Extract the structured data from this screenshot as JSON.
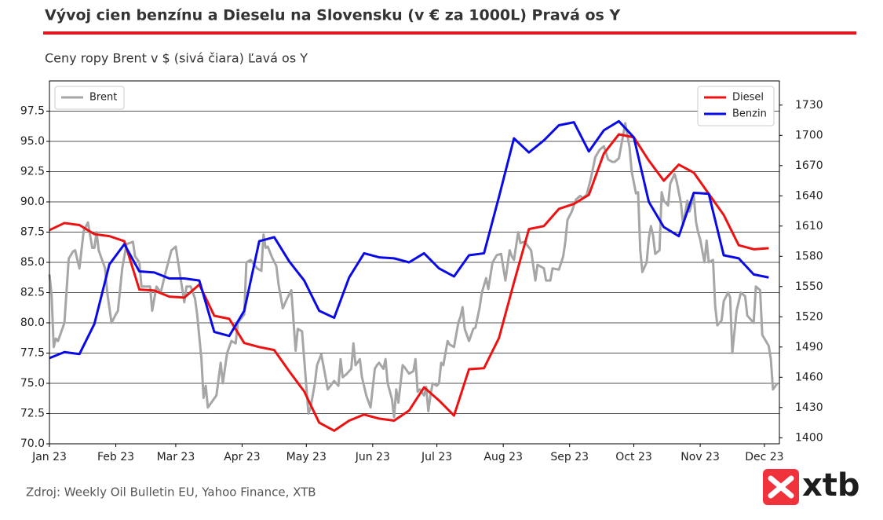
{
  "chart_data": {
    "type": "line",
    "title": "Vývoj cien benzínu a Dieselu na Slovensku (v € za 1000L) Pravá os Y",
    "subtitle": "Ceny ropy Brent v $ (sivá čiara) Ľavá os Y",
    "source": "Zdroj: Weekly Oil Bulletin EU, Yahoo Finance, XTB",
    "logo": "xtb",
    "xlim": [
      0,
      341
    ],
    "xticks": [
      {
        "value": 0,
        "label": "Jan 23"
      },
      {
        "value": 31,
        "label": "Feb 23"
      },
      {
        "value": 59,
        "label": "Mar 23"
      },
      {
        "value": 90,
        "label": "Apr 23"
      },
      {
        "value": 120,
        "label": "May 23"
      },
      {
        "value": 151,
        "label": "Jun 23"
      },
      {
        "value": 181,
        "label": "Jul 23"
      },
      {
        "value": 212,
        "label": "Aug 23"
      },
      {
        "value": 243,
        "label": "Sep 23"
      },
      {
        "value": 273,
        "label": "Oct 23"
      },
      {
        "value": 304,
        "label": "Nov 23"
      },
      {
        "value": 334,
        "label": "Dec 23"
      }
    ],
    "ylim": [
      70,
      100
    ],
    "yticks": [
      {
        "value": 70,
        "label": "70.0"
      },
      72.5,
      {
        "value": 75,
        "label": "75.0"
      },
      77.5,
      {
        "value": 80,
        "label": "80.0"
      },
      82.5,
      {
        "value": 85,
        "label": "85.0"
      },
      87.5,
      {
        "value": 90,
        "label": "90.0"
      },
      92.5,
      {
        "value": 95,
        "label": "95.0"
      },
      97.5
    ],
    "y2lim": [
      1394,
      1754
    ],
    "y2ticks": [
      1400,
      1430,
      1460,
      1490,
      1520,
      1550,
      1580,
      1610,
      1640,
      1670,
      1700,
      1730
    ],
    "grid": true,
    "legend_y": "upper left",
    "legend_y2": "upper right",
    "series": [
      {
        "name": "Brent",
        "color": "#a6a6a6",
        "axis": "y",
        "x": [
          0,
          1,
          2,
          3,
          4,
          6,
          7,
          9,
          11,
          12,
          14,
          16,
          18,
          20,
          21,
          22,
          23,
          26,
          27,
          29,
          31,
          32,
          34,
          36,
          39,
          40,
          42,
          43,
          47,
          48,
          50,
          52,
          54,
          57,
          59,
          61,
          63,
          64,
          66,
          68,
          69,
          71,
          72,
          73,
          74,
          76,
          78,
          80,
          81,
          83,
          85,
          87,
          88,
          91,
          92,
          94,
          97,
          99,
          100,
          101,
          102,
          104,
          106,
          107,
          109,
          111,
          113,
          115,
          116,
          118,
          121,
          122,
          124,
          125,
          127,
          129,
          130,
          133,
          135,
          136,
          137,
          139,
          141,
          142,
          143,
          145,
          146,
          148,
          150,
          152,
          153,
          154,
          156,
          157,
          158,
          160,
          161,
          162,
          163,
          165,
          166,
          168,
          170,
          171,
          172,
          173,
          175,
          176,
          177,
          178,
          179,
          181,
          182,
          183,
          184,
          186,
          187,
          189,
          191,
          192,
          193,
          194,
          196,
          198,
          199,
          201,
          202,
          204,
          205,
          207,
          209,
          211,
          213,
          215,
          216,
          217,
          219,
          220,
          222,
          225,
          227,
          228,
          231,
          232,
          234,
          235,
          238,
          240,
          241,
          242,
          244,
          246,
          248,
          249,
          251,
          253,
          255,
          257,
          259,
          261,
          263,
          264,
          266,
          268,
          269,
          271,
          272,
          274,
          275,
          276,
          277,
          279,
          280,
          281,
          282,
          283,
          285,
          286,
          287,
          289,
          290,
          292,
          293,
          295,
          296,
          298,
          299,
          301,
          302,
          303,
          304,
          306,
          307,
          308,
          310,
          311,
          312,
          314,
          315,
          317,
          318,
          319,
          321,
          323,
          325,
          326,
          329,
          330,
          332,
          333,
          336,
          337,
          338,
          340
        ],
        "values": [
          84,
          82.3,
          78,
          78.7,
          78.5,
          79.5,
          80,
          85.3,
          85.9,
          86,
          84.5,
          87.6,
          88.3,
          86.2,
          86.2,
          87.5,
          86,
          84.5,
          82.5,
          80,
          80.7,
          81,
          84.5,
          86.5,
          86.7,
          85.5,
          85,
          83,
          83,
          81,
          83,
          82.5,
          84,
          86,
          86.3,
          84,
          81.7,
          83,
          83,
          82,
          80.7,
          77,
          73.8,
          74.8,
          73,
          73.5,
          74,
          76.7,
          75,
          77.5,
          78.5,
          78.3,
          80,
          80.7,
          85,
          85.2,
          84.5,
          84.3,
          87.3,
          86.2,
          86.3,
          85.4,
          84.7,
          83.2,
          81.2,
          82,
          82.7,
          77.7,
          79.5,
          79.3,
          72.5,
          73,
          75,
          76.5,
          77.4,
          75.5,
          74.5,
          75.2,
          74.8,
          77,
          75.5,
          75.8,
          76.2,
          78.3,
          76.5,
          77,
          75.5,
          74,
          73,
          76.2,
          76.5,
          76.7,
          76.2,
          77,
          75,
          73.7,
          72.2,
          74.5,
          73.4,
          76.5,
          76.3,
          75.8,
          76,
          77,
          74.3,
          74.5,
          74,
          74.7,
          72.7,
          74,
          75,
          74.8,
          75,
          76.7,
          76.5,
          78.5,
          78.2,
          78,
          80,
          80.5,
          81.3,
          79.5,
          78.5,
          79.5,
          79.6,
          81.3,
          82.5,
          83.7,
          82.8,
          85,
          85.6,
          85.7,
          83.5,
          86,
          85.5,
          85.2,
          87.5,
          86.6,
          86.7,
          86,
          83.5,
          84.8,
          84.5,
          83.5,
          83.5,
          84.5,
          84.4,
          85.5,
          86.7,
          88.5,
          89.2,
          90.2,
          90.5,
          90.3,
          90.6,
          92,
          93.7,
          94.3,
          94.6,
          93.5,
          93.3,
          93.3,
          93.6,
          95.5,
          96.5,
          94.5,
          92.5,
          90.7,
          90.8,
          86,
          84.2,
          85,
          87,
          88,
          87.2,
          85.7,
          86,
          90.8,
          90.1,
          89.7,
          91.5,
          92.3,
          91.7,
          89.9,
          88.1,
          90.1,
          89.2,
          90.5,
          88.4,
          87.5,
          86.9,
          85,
          86.8,
          85,
          85.2,
          81.4,
          79.8,
          80.2,
          81.8,
          82.5,
          82.1,
          77.5,
          81,
          82.5,
          82.2,
          80.6,
          80,
          83,
          82.7,
          79,
          78.1,
          77,
          74.5,
          75
        ]
      },
      {
        "name": "Diesel",
        "color": "#ee1111",
        "axis": "y2",
        "x": [
          0,
          7,
          14,
          21,
          28,
          35,
          42,
          49,
          56,
          63,
          70,
          77,
          84,
          91,
          98,
          105,
          112,
          119,
          126,
          133,
          140,
          147,
          154,
          161,
          168,
          175,
          182,
          189,
          196,
          203,
          210,
          217,
          224,
          231,
          238,
          245,
          252,
          259,
          266,
          273,
          280,
          287,
          294,
          301,
          308,
          315,
          322,
          329,
          336
        ],
        "values": [
          1606,
          1613,
          1611,
          1602,
          1600,
          1595,
          1547,
          1546,
          1540,
          1539,
          1552,
          1521,
          1518,
          1494,
          1490,
          1487,
          1466,
          1446,
          1415,
          1407,
          1417,
          1423,
          1419,
          1417,
          1427,
          1450,
          1437,
          1422,
          1468,
          1469,
          1499,
          1554,
          1607,
          1610,
          1627,
          1632,
          1641,
          1682,
          1701,
          1698,
          1675,
          1655,
          1671,
          1663,
          1642,
          1621,
          1591,
          1587,
          1588
        ]
      },
      {
        "name": "Benzin",
        "color": "#0a0ae6",
        "axis": "y2",
        "x": [
          0,
          7,
          14,
          21,
          28,
          35,
          42,
          49,
          56,
          63,
          70,
          77,
          84,
          91,
          98,
          105,
          112,
          119,
          126,
          133,
          140,
          147,
          154,
          161,
          168,
          175,
          182,
          189,
          196,
          203,
          210,
          217,
          224,
          231,
          238,
          245,
          252,
          259,
          266,
          273,
          280,
          287,
          294,
          301,
          308,
          315,
          322,
          329,
          336
        ],
        "values": [
          1479,
          1485,
          1483,
          1513,
          1572,
          1592,
          1565,
          1564,
          1558,
          1558,
          1556,
          1505,
          1501,
          1526,
          1595,
          1599,
          1575,
          1556,
          1526,
          1519,
          1559,
          1583,
          1579,
          1578,
          1574,
          1583,
          1568,
          1560,
          1581,
          1583,
          1639,
          1697,
          1683,
          1695,
          1710,
          1713,
          1684,
          1705,
          1714,
          1698,
          1634,
          1609,
          1600,
          1643,
          1642,
          1581,
          1578,
          1562,
          1559
        ]
      }
    ]
  }
}
